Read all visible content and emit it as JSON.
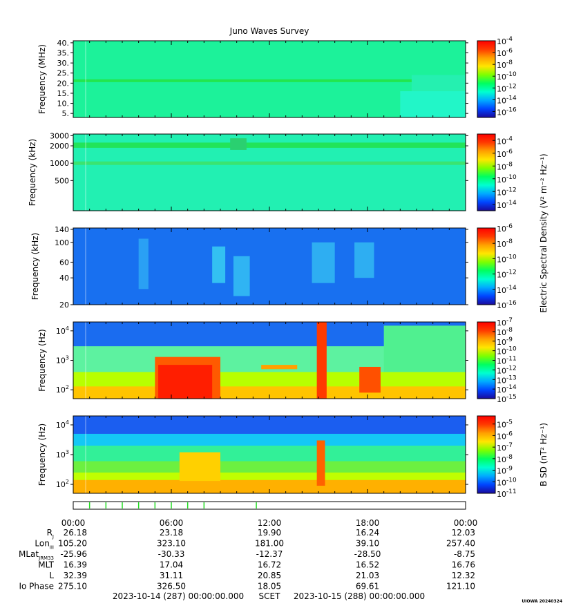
{
  "title": "Juno Waves Survey",
  "palette": [
    "#1a0a9c",
    "#0044ff",
    "#00aaff",
    "#00ffd0",
    "#00ff60",
    "#7dff00",
    "#ffe600",
    "#ffa000",
    "#ff3a00",
    "#ff0000"
  ],
  "chart_data": [
    {
      "type": "heatmap",
      "panel": "hfr-high",
      "ylabel": "Frequency (MHz)",
      "yscale": "linear",
      "ylim": [
        3,
        41
      ],
      "yticks": [
        {
          "v": 5,
          "label": "5."
        },
        {
          "v": 10,
          "label": "10."
        },
        {
          "v": 15,
          "label": "15."
        },
        {
          "v": 20,
          "label": "20."
        },
        {
          "v": 25,
          "label": "25."
        },
        {
          "v": 30,
          "label": "30."
        },
        {
          "v": 35,
          "label": "35."
        },
        {
          "v": 40,
          "label": "40."
        }
      ],
      "colorbar": {
        "min_exp": -17,
        "max_exp": -4,
        "labels": [
          "-4",
          "-6",
          "-8",
          "-10",
          "-12",
          "-14",
          "-16"
        ],
        "label_exps": [
          -4,
          -6,
          -8,
          -10,
          -12,
          -14,
          -16
        ]
      },
      "background_color": "#1cf29a",
      "features": [
        {
          "kind": "band",
          "y": 21.2,
          "h": 1.4,
          "color": "#22e64e"
        },
        {
          "kind": "region",
          "t0": 20.0,
          "t1": 24,
          "y0": 3,
          "y1": 16,
          "color": "#22f6c8"
        },
        {
          "kind": "region",
          "t0": 20.7,
          "t1": 24,
          "y0": 16,
          "y1": 24,
          "color": "#25f0b0"
        }
      ]
    },
    {
      "type": "heatmap",
      "panel": "hfr-low",
      "ylabel": "Frequency (kHz)",
      "yscale": "log",
      "ylim": [
        150,
        3200
      ],
      "yticks": [
        {
          "v": 500,
          "label": "500"
        },
        {
          "v": 1000,
          "label": "1000"
        },
        {
          "v": 2000,
          "label": "2000"
        },
        {
          "v": 3000,
          "label": "3000"
        }
      ],
      "colorbar": {
        "min_exp": -15,
        "max_exp": -3,
        "labels": [
          "-4",
          "-6",
          "-8",
          "-10",
          "-12",
          "-14"
        ],
        "label_exps": [
          -4,
          -6,
          -8,
          -10,
          -12,
          -14
        ],
        "title": "Electric Spectral Density (V² m⁻² Hz⁻¹)"
      },
      "background_color": "#22f0b2",
      "features": [
        {
          "kind": "band",
          "y": 2050,
          "h": 0.09,
          "color": "#22e45a"
        },
        {
          "kind": "band",
          "y": 1000,
          "h": 0.06,
          "color": "#3ae470"
        },
        {
          "kind": "region",
          "t0": 9.6,
          "t1": 10.6,
          "y0": 1700,
          "y1": 2700,
          "color": "#2ad070"
        }
      ]
    },
    {
      "type": "heatmap",
      "panel": "lfr-high",
      "ylabel": "Frequency (kHz)",
      "yscale": "log",
      "ylim": [
        20,
        145
      ],
      "yticks": [
        {
          "v": 20,
          "label": "20"
        },
        {
          "v": 40,
          "label": "40"
        },
        {
          "v": 60,
          "label": "60"
        },
        {
          "v": 100,
          "label": "100"
        },
        {
          "v": 140,
          "label": "140"
        }
      ],
      "colorbar": {
        "min_exp": -16,
        "max_exp": -6,
        "labels": [
          "-6",
          "-8",
          "-10",
          "-12",
          "-14",
          "-16"
        ],
        "label_exps": [
          -6,
          -8,
          -10,
          -12,
          -14,
          -16
        ]
      },
      "background_color": "#1870f0",
      "features": [
        {
          "kind": "region",
          "t0": 4.0,
          "t1": 4.6,
          "y0": 30,
          "y1": 110,
          "color": "#2aa0f4"
        },
        {
          "kind": "region",
          "t0": 8.5,
          "t1": 9.3,
          "y0": 35,
          "y1": 90,
          "color": "#33c0f2"
        },
        {
          "kind": "region",
          "t0": 9.8,
          "t1": 10.8,
          "y0": 25,
          "y1": 70,
          "color": "#30b4f3"
        },
        {
          "kind": "region",
          "t0": 14.6,
          "t1": 16.0,
          "y0": 35,
          "y1": 100,
          "color": "#2eaef2"
        },
        {
          "kind": "region",
          "t0": 17.2,
          "t1": 18.4,
          "y0": 40,
          "y1": 100,
          "color": "#2eaef2"
        }
      ]
    },
    {
      "type": "heatmap",
      "panel": "e-low",
      "ylabel": "Frequency (Hz)",
      "yscale": "log",
      "ylim": [
        50,
        20000
      ],
      "yticks": [
        {
          "v": 100,
          "label": "10",
          "sup": "2"
        },
        {
          "v": 1000,
          "label": "10",
          "sup": "3"
        },
        {
          "v": 10000,
          "label": "10",
          "sup": "4"
        }
      ],
      "colorbar": {
        "min_exp": -15,
        "max_exp": -7,
        "labels": [
          "-7",
          "-8",
          "-9",
          "-10",
          "-11",
          "-12",
          "-13",
          "-14",
          "-15"
        ],
        "label_exps": [
          -7,
          -8,
          -9,
          -10,
          -11,
          -12,
          -13,
          -14,
          -15
        ]
      },
      "background_color": "#1a6cf0",
      "features": [
        {
          "kind": "region",
          "t0": 0,
          "t1": 24,
          "y0": 50,
          "y1": 3000,
          "color": "#5df2a0"
        },
        {
          "kind": "region",
          "t0": 0,
          "t1": 24,
          "y0": 50,
          "y1": 400,
          "color": "#b8ff00"
        },
        {
          "kind": "region",
          "t0": 0,
          "t1": 24,
          "y0": 50,
          "y1": 130,
          "color": "#ffc400"
        },
        {
          "kind": "region",
          "t0": 5.0,
          "t1": 9.0,
          "y0": 50,
          "y1": 1300,
          "color": "#ff5a00"
        },
        {
          "kind": "region",
          "t0": 5.2,
          "t1": 8.5,
          "y0": 50,
          "y1": 700,
          "color": "#ff1e00"
        },
        {
          "kind": "region",
          "t0": 11.5,
          "t1": 13.7,
          "y0": 500,
          "y1": 700,
          "color": "#ffa000"
        },
        {
          "kind": "region",
          "t0": 14.9,
          "t1": 15.5,
          "y0": 50,
          "y1": 20000,
          "color": "#ff3a00"
        },
        {
          "kind": "region",
          "t0": 17.5,
          "t1": 18.8,
          "y0": 80,
          "y1": 600,
          "color": "#ff5000"
        },
        {
          "kind": "region",
          "t0": 19.0,
          "t1": 24,
          "y0": 400,
          "y1": 15000,
          "color": "#50f090"
        }
      ]
    },
    {
      "type": "heatmap",
      "panel": "b-low",
      "ylabel": "Frequency (Hz)",
      "yscale": "log",
      "ylim": [
        50,
        20000
      ],
      "yticks": [
        {
          "v": 100,
          "label": "10",
          "sup": "2"
        },
        {
          "v": 1000,
          "label": "10",
          "sup": "3"
        },
        {
          "v": 10000,
          "label": "10",
          "sup": "4"
        }
      ],
      "colorbar": {
        "min_exp": -11,
        "max_exp": -4.3,
        "labels": [
          "-5",
          "-6",
          "-7",
          "-8",
          "-9",
          "-10",
          "-11"
        ],
        "label_exps": [
          -5,
          -6,
          -7,
          -8,
          -9,
          -10,
          -11
        ],
        "title": "B SD (nT² Hz⁻¹)"
      },
      "background_color": "#1b5ef0",
      "features": [
        {
          "kind": "region",
          "t0": 0,
          "t1": 24,
          "y0": 50,
          "y1": 5000,
          "color": "#14c8f5"
        },
        {
          "kind": "region",
          "t0": 0,
          "t1": 24,
          "y0": 50,
          "y1": 2000,
          "color": "#32f098"
        },
        {
          "kind": "region",
          "t0": 0,
          "t1": 24,
          "y0": 50,
          "y1": 600,
          "color": "#6cf040"
        },
        {
          "kind": "region",
          "t0": 0,
          "t1": 24,
          "y0": 50,
          "y1": 250,
          "color": "#c0ff00"
        },
        {
          "kind": "region",
          "t0": 0,
          "t1": 24,
          "y0": 50,
          "y1": 140,
          "color": "#ffb000"
        },
        {
          "kind": "region",
          "t0": 6.5,
          "t1": 9.0,
          "y0": 130,
          "y1": 1200,
          "color": "#ffd000"
        },
        {
          "kind": "region",
          "t0": 14.9,
          "t1": 15.4,
          "y0": 90,
          "y1": 3000,
          "color": "#ff6000"
        }
      ]
    }
  ],
  "time_axis": {
    "tmin": 0,
    "tmax": 24,
    "labels": [
      {
        "t": 0,
        "label": "00:00"
      },
      {
        "t": 6,
        "label": "06:00"
      },
      {
        "t": 12,
        "label": "12:00"
      },
      {
        "t": 18,
        "label": "18:00"
      },
      {
        "t": 24,
        "label": "00:00"
      }
    ]
  },
  "event_marks": [
    1.0,
    2.0,
    3.0,
    4.0,
    5.0,
    6.0,
    7.0,
    8.0,
    11.2
  ],
  "ephemeris": {
    "rows": [
      {
        "label": "R",
        "sub": "J",
        "values": [
          "26.18",
          "23.18",
          "19.90",
          "16.24",
          "12.03"
        ]
      },
      {
        "label": "Lon",
        "sub": "III",
        "values": [
          "105.20",
          "323.10",
          "181.00",
          "39.10",
          "257.40"
        ]
      },
      {
        "label": "MLat",
        "sub": "JRM33",
        "values": [
          "-25.96",
          "-30.33",
          "-12.37",
          "-28.50",
          "-8.75"
        ]
      },
      {
        "label": "MLT",
        "sub": "",
        "values": [
          "16.39",
          "17.04",
          "16.72",
          "16.52",
          "16.76"
        ]
      },
      {
        "label": "L",
        "sub": "",
        "values": [
          "32.39",
          "31.11",
          "20.85",
          "21.03",
          "12.32"
        ]
      },
      {
        "label": "Io Phase",
        "sub": "",
        "values": [
          "275.10",
          "326.50",
          "18.05",
          "69.61",
          "121.10"
        ]
      }
    ]
  },
  "footer": {
    "start": "2023-10-14 (287) 00:00:00.000",
    "scet": "SCET",
    "end": "2023-10-15 (288) 00:00:00.000",
    "stamp": "UIOWA 20240324"
  }
}
